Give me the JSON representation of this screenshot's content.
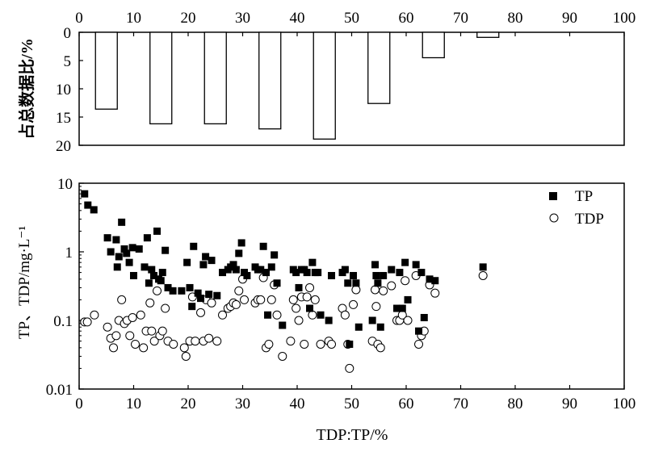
{
  "chart_data": [
    {
      "type": "bar",
      "orientation": "inverted",
      "ylabel": "占总数据比/%",
      "xlim": [
        0,
        100
      ],
      "ylim": [
        0,
        20
      ],
      "x_ticks": [
        "0",
        "10",
        "20",
        "30",
        "40",
        "50",
        "60",
        "70",
        "80",
        "90",
        "100"
      ],
      "y_ticks": [
        "0",
        "5",
        "10",
        "15",
        "20"
      ],
      "bins": [
        {
          "from": 0,
          "to": 10,
          "value": 13.6
        },
        {
          "from": 10,
          "to": 20,
          "value": 16.2
        },
        {
          "from": 20,
          "to": 30,
          "value": 16.2
        },
        {
          "from": 30,
          "to": 40,
          "value": 17.1
        },
        {
          "from": 40,
          "to": 50,
          "value": 18.9
        },
        {
          "from": 50,
          "to": 60,
          "value": 12.6
        },
        {
          "from": 60,
          "to": 70,
          "value": 4.5
        },
        {
          "from": 70,
          "to": 80,
          "value": 0.9
        }
      ],
      "grid": false
    },
    {
      "type": "scatter",
      "xlabel": "TDP:TP/%",
      "ylabel": "TP、TDP/mg·L⁻¹",
      "xlim": [
        0,
        100
      ],
      "ylim": [
        0.01,
        10
      ],
      "y_scale": "log",
      "x_ticks": [
        "0",
        "10",
        "20",
        "30",
        "40",
        "50",
        "60",
        "70",
        "80",
        "90",
        "100"
      ],
      "y_ticks": [
        {
          "label": "0.01",
          "value": 0.01
        },
        {
          "label": "0.1",
          "value": 0.1
        },
        {
          "label": "1",
          "value": 1
        },
        {
          "label": "10",
          "value": 10
        }
      ],
      "legend_position": "top-right",
      "grid": false,
      "series": [
        {
          "name": "TP",
          "marker": "filled-square",
          "points": [
            [
              1,
              7.0
            ],
            [
              1.6,
              4.8
            ],
            [
              2.7,
              4.1
            ],
            [
              5.2,
              1.6
            ],
            [
              5.8,
              1.0
            ],
            [
              6.8,
              1.5
            ],
            [
              7,
              0.6
            ],
            [
              7.3,
              0.85
            ],
            [
              7.8,
              2.7
            ],
            [
              8.3,
              1.1
            ],
            [
              8.7,
              0.95
            ],
            [
              9.2,
              0.7
            ],
            [
              9.8,
              1.15
            ],
            [
              10,
              0.45
            ],
            [
              11,
              1.1
            ],
            [
              12,
              0.6
            ],
            [
              12.5,
              1.6
            ],
            [
              12.8,
              0.35
            ],
            [
              13.3,
              0.55
            ],
            [
              13.7,
              0.45
            ],
            [
              14.3,
              2.0
            ],
            [
              14.6,
              0.4
            ],
            [
              15,
              0.38
            ],
            [
              15.3,
              0.5
            ],
            [
              15.8,
              1.05
            ],
            [
              16.3,
              0.3
            ],
            [
              17.2,
              0.27
            ],
            [
              18.8,
              0.27
            ],
            [
              19.8,
              0.7
            ],
            [
              20.7,
              0.16
            ],
            [
              20.3,
              0.3
            ],
            [
              21,
              1.2
            ],
            [
              21.8,
              0.25
            ],
            [
              22.3,
              0.21
            ],
            [
              22.8,
              0.65
            ],
            [
              23.2,
              0.85
            ],
            [
              23.8,
              0.24
            ],
            [
              24.3,
              0.75
            ],
            [
              25.3,
              0.23
            ],
            [
              26.3,
              0.5
            ],
            [
              27.3,
              0.55
            ],
            [
              27.8,
              0.6
            ],
            [
              28.3,
              0.65
            ],
            [
              28.8,
              0.55
            ],
            [
              29.3,
              0.95
            ],
            [
              29.8,
              1.35
            ],
            [
              30.3,
              0.5
            ],
            [
              30.8,
              0.45
            ],
            [
              32.3,
              0.6
            ],
            [
              32.8,
              0.55
            ],
            [
              33.3,
              0.55
            ],
            [
              33.8,
              1.2
            ],
            [
              34.3,
              0.5
            ],
            [
              34.6,
              0.12
            ],
            [
              35.3,
              0.6
            ],
            [
              35.8,
              0.9
            ],
            [
              36.3,
              0.35
            ],
            [
              37.3,
              0.085
            ],
            [
              39.3,
              0.55
            ],
            [
              39.8,
              0.5
            ],
            [
              40.3,
              0.3
            ],
            [
              40.8,
              0.55
            ],
            [
              41.3,
              0.55
            ],
            [
              41.8,
              0.5
            ],
            [
              42.3,
              0.15
            ],
            [
              42.8,
              0.7
            ],
            [
              43.3,
              0.5
            ],
            [
              43.8,
              0.5
            ],
            [
              44.3,
              0.12
            ],
            [
              45.8,
              0.1
            ],
            [
              46.3,
              0.45
            ],
            [
              48.3,
              0.5
            ],
            [
              48.8,
              0.55
            ],
            [
              49.3,
              0.35
            ],
            [
              49.6,
              0.045
            ],
            [
              50.3,
              0.45
            ],
            [
              50.8,
              0.35
            ],
            [
              51.3,
              0.08
            ],
            [
              53.8,
              0.1
            ],
            [
              54.3,
              0.65
            ],
            [
              54.5,
              0.45
            ],
            [
              54.8,
              0.35
            ],
            [
              55.3,
              0.08
            ],
            [
              55.8,
              0.45
            ],
            [
              57.3,
              0.55
            ],
            [
              58.3,
              0.15
            ],
            [
              58.8,
              0.5
            ],
            [
              59.3,
              0.15
            ],
            [
              59.8,
              0.7
            ],
            [
              60.3,
              0.2
            ],
            [
              61.8,
              0.65
            ],
            [
              62.3,
              0.07
            ],
            [
              62.8,
              0.5
            ],
            [
              63.3,
              0.11
            ],
            [
              64.3,
              0.4
            ],
            [
              65.3,
              0.38
            ],
            [
              74.1,
              0.6
            ]
          ]
        },
        {
          "name": "TDP",
          "marker": "open-circle",
          "points": [
            [
              1,
              0.095
            ],
            [
              1.5,
              0.095
            ],
            [
              2.8,
              0.12
            ],
            [
              5.2,
              0.08
            ],
            [
              5.8,
              0.055
            ],
            [
              6.3,
              0.04
            ],
            [
              6.8,
              0.06
            ],
            [
              7.3,
              0.1
            ],
            [
              7.8,
              0.2
            ],
            [
              8.3,
              0.09
            ],
            [
              8.8,
              0.1
            ],
            [
              9.3,
              0.06
            ],
            [
              9.8,
              0.11
            ],
            [
              10.3,
              0.045
            ],
            [
              11.3,
              0.12
            ],
            [
              11.8,
              0.04
            ],
            [
              12.3,
              0.07
            ],
            [
              13,
              0.18
            ],
            [
              13.3,
              0.07
            ],
            [
              13.8,
              0.05
            ],
            [
              14.3,
              0.27
            ],
            [
              14.8,
              0.06
            ],
            [
              15.3,
              0.07
            ],
            [
              15.8,
              0.15
            ],
            [
              16.3,
              0.05
            ],
            [
              17.3,
              0.045
            ],
            [
              19.3,
              0.04
            ],
            [
              19.6,
              0.03
            ],
            [
              20.3,
              0.05
            ],
            [
              20.8,
              0.22
            ],
            [
              21.3,
              0.05
            ],
            [
              22.3,
              0.13
            ],
            [
              22.8,
              0.05
            ],
            [
              23.3,
              0.2
            ],
            [
              23.8,
              0.055
            ],
            [
              24.3,
              0.18
            ],
            [
              25.3,
              0.05
            ],
            [
              26.3,
              0.12
            ],
            [
              27.3,
              0.15
            ],
            [
              27.8,
              0.16
            ],
            [
              28.3,
              0.18
            ],
            [
              28.8,
              0.17
            ],
            [
              29.3,
              0.27
            ],
            [
              30,
              0.4
            ],
            [
              30.3,
              0.2
            ],
            [
              32.3,
              0.18
            ],
            [
              32.8,
              0.2
            ],
            [
              33.3,
              0.2
            ],
            [
              33.8,
              0.42
            ],
            [
              34.3,
              0.04
            ],
            [
              34.8,
              0.045
            ],
            [
              35.3,
              0.2
            ],
            [
              35.8,
              0.33
            ],
            [
              36.3,
              0.12
            ],
            [
              37.3,
              0.03
            ],
            [
              38.8,
              0.05
            ],
            [
              39.3,
              0.2
            ],
            [
              39.8,
              0.15
            ],
            [
              40.3,
              0.1
            ],
            [
              40.8,
              0.22
            ],
            [
              41.3,
              0.045
            ],
            [
              41.8,
              0.22
            ],
            [
              42.3,
              0.3
            ],
            [
              42.8,
              0.12
            ],
            [
              43.3,
              0.2
            ],
            [
              44.3,
              0.045
            ],
            [
              45.8,
              0.05
            ],
            [
              46.3,
              0.045
            ],
            [
              48.3,
              0.15
            ],
            [
              48.8,
              0.12
            ],
            [
              49.3,
              0.045
            ],
            [
              49.6,
              0.02
            ],
            [
              50.3,
              0.17
            ],
            [
              50.8,
              0.28
            ],
            [
              53.8,
              0.05
            ],
            [
              54.3,
              0.28
            ],
            [
              54.5,
              0.16
            ],
            [
              54.8,
              0.045
            ],
            [
              55.3,
              0.04
            ],
            [
              55.8,
              0.27
            ],
            [
              57.3,
              0.32
            ],
            [
              58.3,
              0.1
            ],
            [
              58.8,
              0.1
            ],
            [
              59.3,
              0.12
            ],
            [
              59.8,
              0.38
            ],
            [
              60.3,
              0.1
            ],
            [
              61.8,
              0.45
            ],
            [
              62.3,
              0.045
            ],
            [
              62.8,
              0.06
            ],
            [
              63.3,
              0.07
            ],
            [
              64.3,
              0.33
            ],
            [
              65.3,
              0.25
            ],
            [
              74.1,
              0.45
            ]
          ]
        }
      ]
    }
  ]
}
